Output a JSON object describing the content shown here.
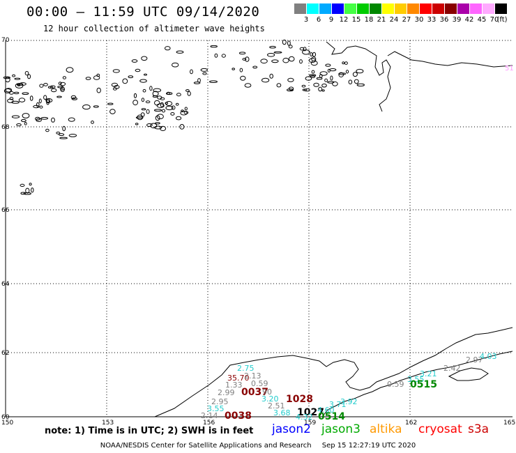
{
  "header": {
    "title": "00:00 – 11:59 UTC 09/14/2020",
    "subtitle": "12 hour collection of altimeter wave heights"
  },
  "legend": {
    "unit": "(ft)",
    "bins": [
      {
        "label": "3",
        "color": "#808080"
      },
      {
        "label": "6",
        "color": "#00ffff"
      },
      {
        "label": "9",
        "color": "#00aaff"
      },
      {
        "label": "12",
        "color": "#0000ff"
      },
      {
        "label": "15",
        "color": "#44ff44"
      },
      {
        "label": "18",
        "color": "#00cc00"
      },
      {
        "label": "21",
        "color": "#008800"
      },
      {
        "label": "24",
        "color": "#ffff00"
      },
      {
        "label": "27",
        "color": "#ffcc00"
      },
      {
        "label": "30",
        "color": "#ff8800"
      },
      {
        "label": "33",
        "color": "#ff0000"
      },
      {
        "label": "36",
        "color": "#cc0000"
      },
      {
        "label": "39",
        "color": "#880000"
      },
      {
        "label": "42",
        "color": "#aa00aa"
      },
      {
        "label": "45",
        "color": "#ff66ff"
      },
      {
        "label": "70",
        "color": "#ffaaff"
      },
      {
        "label": "",
        "color": "#000000"
      }
    ]
  },
  "map": {
    "lat_labels": [
      "70",
      "68",
      "66",
      "64",
      "62",
      "60"
    ],
    "lon_labels": [
      "150",
      "153",
      "156",
      "159",
      "162",
      "165"
    ],
    "edge_label": "51",
    "observations": [
      {
        "text": "2.75",
        "color": "#22cccc"
      },
      {
        "text": "35.70",
        "color": "#880000"
      },
      {
        "text": "2.13",
        "color": "#808080"
      },
      {
        "text": "1.33",
        "color": "#808080"
      },
      {
        "text": "0.59",
        "color": "#808080"
      },
      {
        "text": "2.99",
        "color": "#808080"
      },
      {
        "text": "0037",
        "color": "#880000"
      },
      {
        "text": "90",
        "color": "#808080"
      },
      {
        "text": "3.20",
        "color": "#22cccc"
      },
      {
        "text": "1028",
        "color": "#880000"
      },
      {
        "text": "2.95",
        "color": "#808080"
      },
      {
        "text": "2.51",
        "color": "#808080"
      },
      {
        "text": "3.55",
        "color": "#22cccc"
      },
      {
        "text": "3.68",
        "color": "#22cccc"
      },
      {
        "text": "1027",
        "color": "#000000"
      },
      {
        "text": "2.14",
        "color": "#808080"
      },
      {
        "text": "0038",
        "color": "#880000"
      },
      {
        "text": "4.32",
        "color": "#22cccc"
      },
      {
        "text": "0514",
        "color": "#008800"
      },
      {
        "text": "4.60",
        "color": "#22cccc"
      },
      {
        "text": "3.71",
        "color": "#22cccc"
      },
      {
        "text": "3.92",
        "color": "#22cccc"
      },
      {
        "text": "0.59",
        "color": "#808080"
      },
      {
        "text": "3.55",
        "color": "#22cccc"
      },
      {
        "text": "0515",
        "color": "#008800"
      },
      {
        "text": "3.21",
        "color": "#22cccc"
      },
      {
        "text": "2.42",
        "color": "#808080"
      },
      {
        "text": "2.97",
        "color": "#808080"
      },
      {
        "text": "4.03",
        "color": "#22cccc"
      }
    ]
  },
  "note": "note:  1) Time is in UTC;  2) SWH is in feet",
  "satellites": [
    {
      "name": "jason2",
      "color": "#0000ff"
    },
    {
      "name": "jason3",
      "color": "#00aa00"
    },
    {
      "name": "altika",
      "color": "#ff9900"
    },
    {
      "name": "cryosat",
      "color": "#ff0000"
    },
    {
      "name": "s3a",
      "color": "#cc0000"
    }
  ],
  "footer": {
    "org": "NOAA/NESDIS Center for Satellite Applications and Research",
    "timestamp": "Sep 15 12:27:19 UTC 2020"
  }
}
